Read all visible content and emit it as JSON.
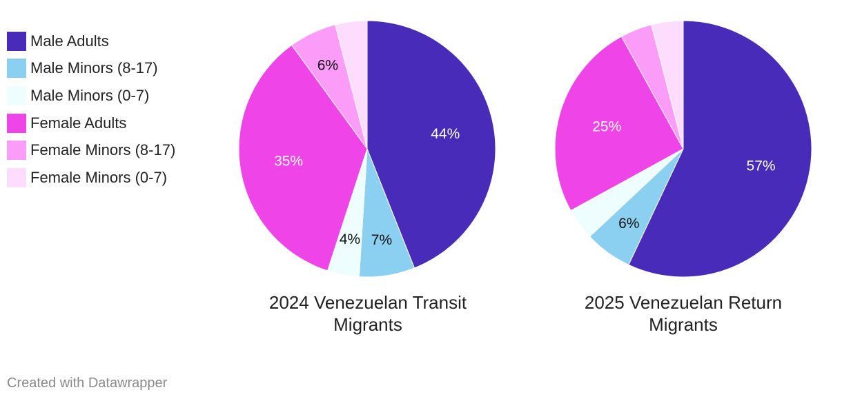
{
  "chart_data": [
    {
      "type": "pie",
      "title": "2024 Venezuelan Transit Migrants",
      "categories": [
        "Male Adults",
        "Male Minors (8-17)",
        "Male Minors (0-7)",
        "Female Adults",
        "Female Minors (8-17)",
        "Female Minors (0-7)"
      ],
      "values": [
        44,
        7,
        4,
        35,
        6,
        4
      ],
      "labels": [
        "44%",
        "7%",
        "4%",
        "35%",
        "6%",
        ""
      ]
    },
    {
      "type": "pie",
      "title": "2025 Venezuelan Return Migrants",
      "categories": [
        "Male Adults",
        "Male Minors (8-17)",
        "Male Minors (0-7)",
        "Female Adults",
        "Female Minors (8-17)",
        "Female Minors (0-7)"
      ],
      "values": [
        57,
        6,
        4,
        25,
        4,
        4
      ],
      "labels": [
        "57%",
        "6%",
        "",
        "25%",
        "",
        ""
      ]
    }
  ],
  "legend": [
    {
      "label": "Male Adults",
      "color": "#482bb8"
    },
    {
      "label": "Male Minors (8-17)",
      "color": "#8bd0f0"
    },
    {
      "label": "Male Minors (0-7)",
      "color": "#eefdfd"
    },
    {
      "label": "Female Adults",
      "color": "#ee44e8"
    },
    {
      "label": "Female Minors (8-17)",
      "color": "#fb9cf8"
    },
    {
      "label": "Female Minors (0-7)",
      "color": "#fedcfd"
    }
  ],
  "label_colors": [
    "#ffffff",
    "#111111",
    "#111111",
    "#ffffff",
    "#111111",
    "#111111"
  ],
  "footer": "Created with Datawrapper"
}
